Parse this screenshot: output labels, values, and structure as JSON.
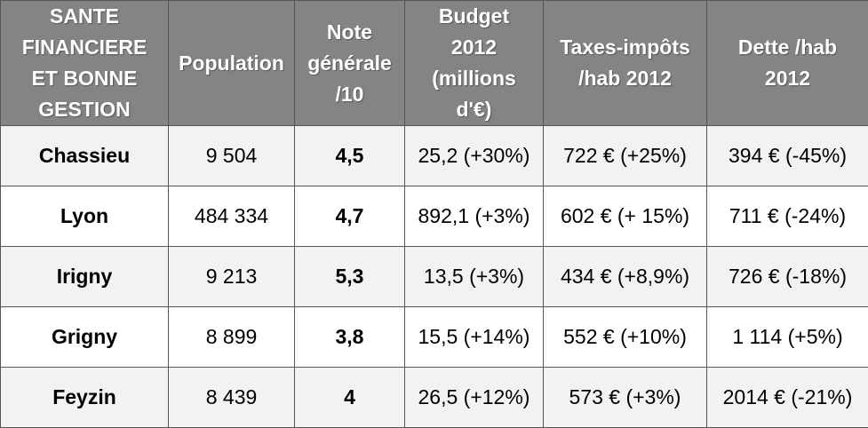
{
  "table": {
    "headers": [
      "SANTE\nFINANCIERE\nET BONNE\nGESTION",
      "Population",
      "Note\ngénérale\n/10",
      "Budget\n2012\n(millions\nd'€)",
      "Taxes-impôts\n/hab 2012",
      "Dette /hab\n2012"
    ],
    "rows": [
      [
        "Chassieu",
        "9 504",
        "4,5",
        "25,2 (+30%)",
        "722 € (+25%)",
        "394 € (-45%)"
      ],
      [
        "Lyon",
        "484 334",
        "4,7",
        "892,1 (+3%)",
        "602 € (+ 15%)",
        "711 € (-24%)"
      ],
      [
        "Irigny",
        "9 213",
        "5,3",
        "13,5 (+3%)",
        "434 € (+8,9%)",
        "726 € (-18%)"
      ],
      [
        "Grigny",
        "8 899",
        "3,8",
        "15,5 (+14%)",
        "552 € (+10%)",
        "1 114 (+5%)"
      ],
      [
        "Feyzin",
        "8 439",
        "4",
        "26,5 (+12%)",
        "573 € (+3%)",
        "2014 € (-21%)"
      ]
    ]
  },
  "colors": {
    "header_bg": "#848484",
    "header_text": "#ffffff",
    "row_odd_bg": "#f2f2f2",
    "row_even_bg": "#ffffff",
    "border": "#555555"
  }
}
